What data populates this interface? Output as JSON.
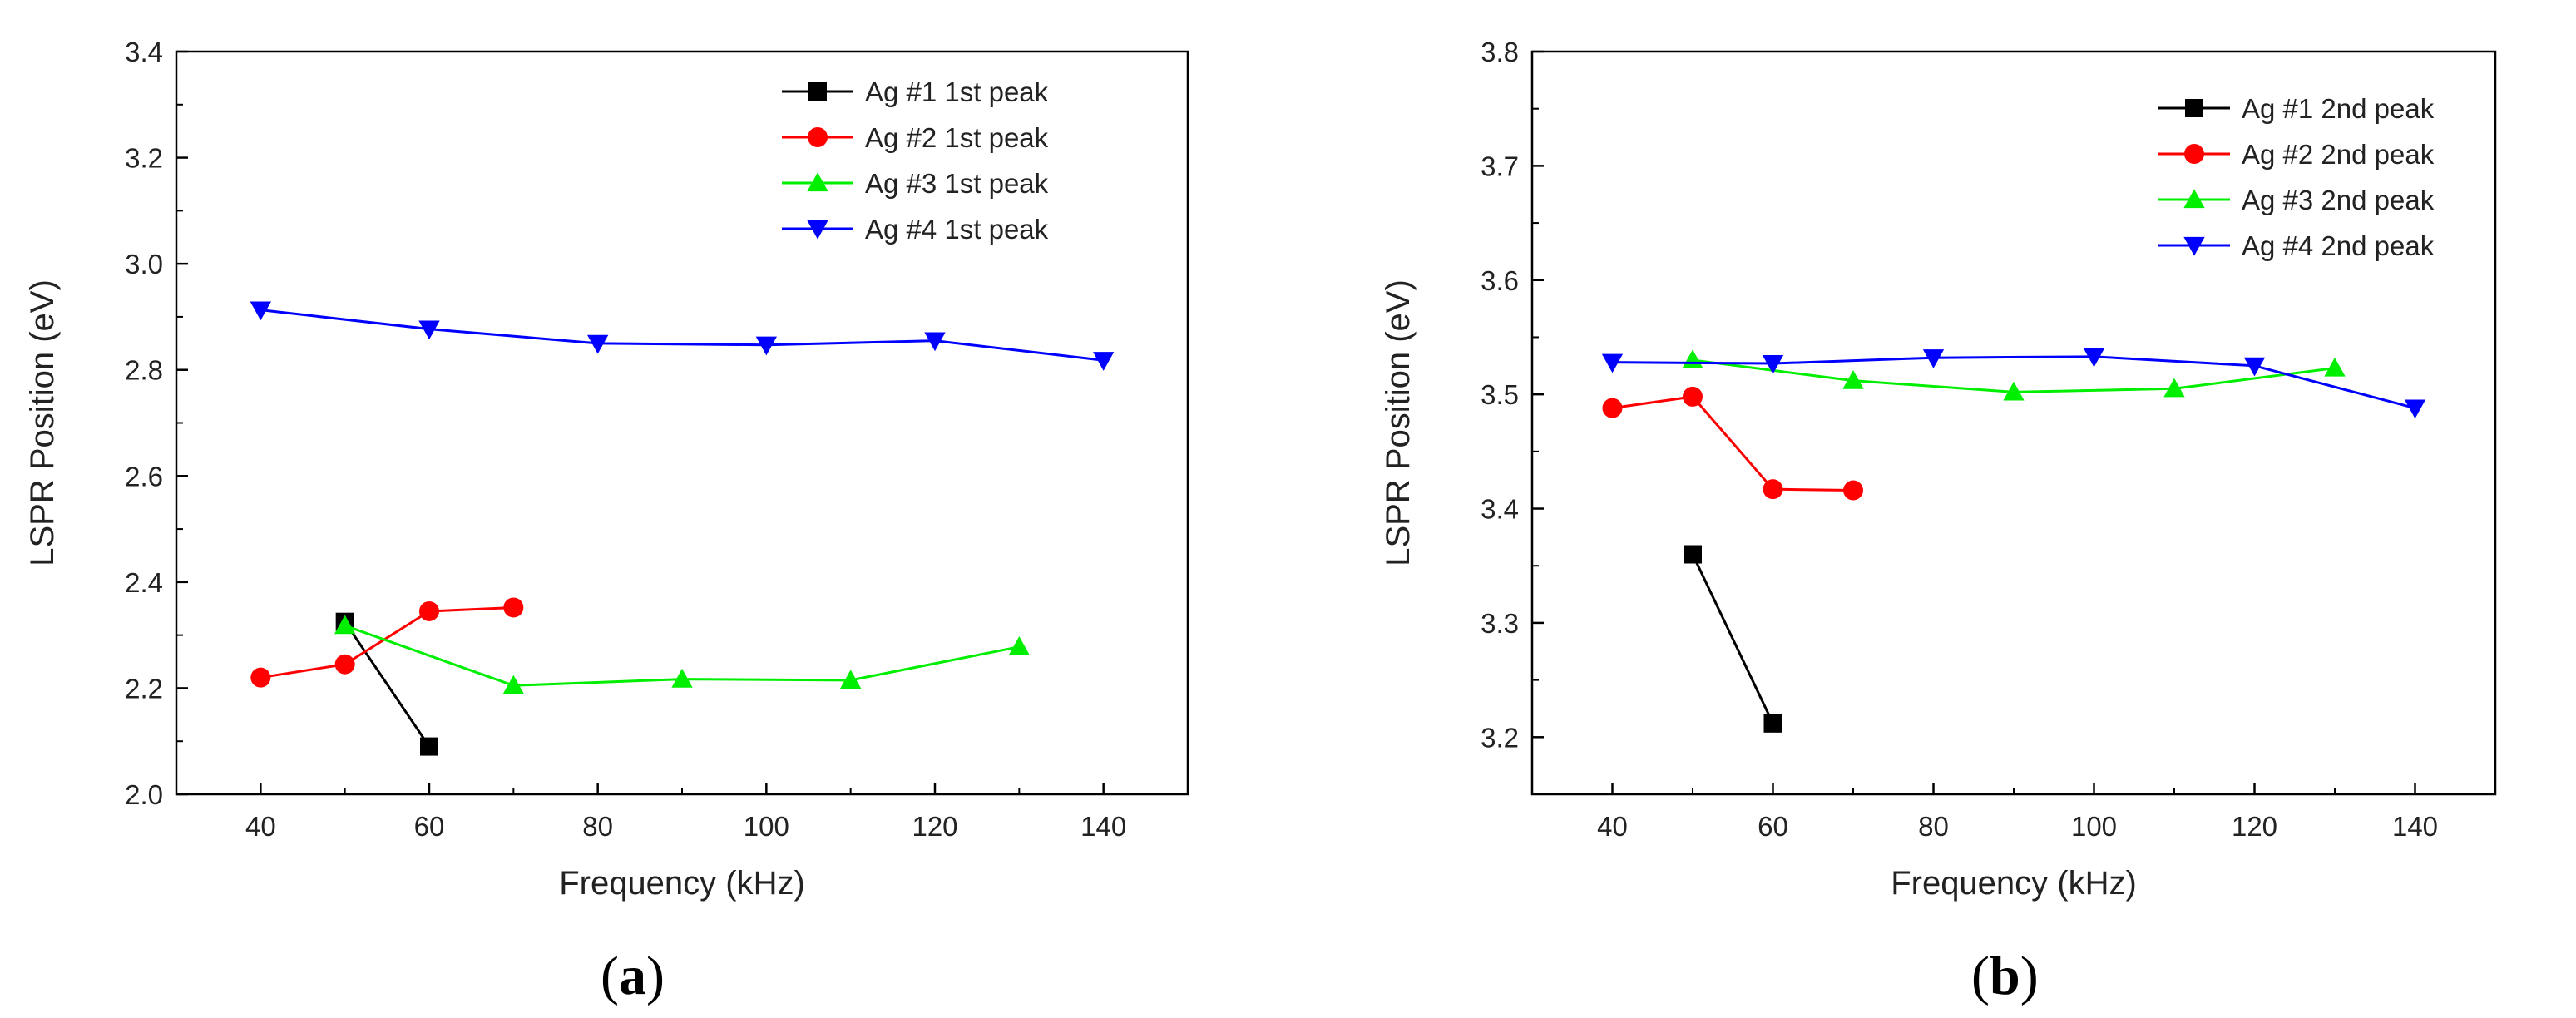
{
  "chart_data": [
    {
      "type": "line",
      "panel_label": "a",
      "title": "",
      "xlabel": "Frequency (kHz)",
      "ylabel": "LSPR Position (eV)",
      "xlim": [
        30,
        150
      ],
      "ylim": [
        2.0,
        3.4
      ],
      "xticks": [
        40,
        60,
        80,
        100,
        120,
        140
      ],
      "yticks": [
        2.0,
        2.2,
        2.4,
        2.6,
        2.8,
        3.0,
        3.2,
        3.4
      ],
      "ytick_labels": [
        "2.0",
        "2.2",
        "2.4",
        "2.6",
        "2.8",
        "3.0",
        "3.2",
        "3.4"
      ],
      "grid": false,
      "legend_position": "top-right",
      "series": [
        {
          "name": "Ag #1 1st peak",
          "color": "#000000",
          "marker": "square",
          "x": [
            50,
            60
          ],
          "y": [
            2.325,
            2.09
          ]
        },
        {
          "name": "Ag #2 1st peak",
          "color": "#ff0000",
          "marker": "circle",
          "x": [
            40,
            50,
            60,
            70
          ],
          "y": [
            2.22,
            2.245,
            2.345,
            2.352
          ]
        },
        {
          "name": "Ag #3 1st peak",
          "color": "#00ee00",
          "marker": "triangle-up",
          "x": [
            50,
            70,
            90,
            110,
            130
          ],
          "y": [
            2.318,
            2.205,
            2.217,
            2.215,
            2.278
          ]
        },
        {
          "name": "Ag #4 1st peak",
          "color": "#0000ff",
          "marker": "triangle-down",
          "x": [
            40,
            60,
            80,
            100,
            120,
            140
          ],
          "y": [
            2.913,
            2.877,
            2.85,
            2.847,
            2.855,
            2.818
          ]
        }
      ]
    },
    {
      "type": "line",
      "panel_label": "b",
      "title": "",
      "xlabel": "Frequency (kHz)",
      "ylabel": "LSPR Position (eV)",
      "xlim": [
        30,
        150
      ],
      "ylim": [
        3.15,
        3.8
      ],
      "xticks": [
        40,
        60,
        80,
        100,
        120,
        140
      ],
      "yticks": [
        3.2,
        3.3,
        3.4,
        3.5,
        3.6,
        3.7,
        3.8
      ],
      "ytick_labels": [
        "3.2",
        "3.3",
        "3.4",
        "3.5",
        "3.6",
        "3.7",
        "3.8"
      ],
      "grid": false,
      "legend_position": "top-right",
      "series": [
        {
          "name": "Ag #1 2nd peak",
          "color": "#000000",
          "marker": "square",
          "x": [
            50,
            60
          ],
          "y": [
            3.36,
            3.212
          ]
        },
        {
          "name": "Ag #2 2nd peak",
          "color": "#ff0000",
          "marker": "circle",
          "x": [
            40,
            50,
            60,
            70
          ],
          "y": [
            3.488,
            3.498,
            3.417,
            3.416
          ]
        },
        {
          "name": "Ag #3 2nd peak",
          "color": "#00ee00",
          "marker": "triangle-up",
          "x": [
            50,
            70,
            90,
            110,
            130
          ],
          "y": [
            3.53,
            3.512,
            3.502,
            3.505,
            3.523
          ]
        },
        {
          "name": "Ag #4 2nd peak",
          "color": "#0000ff",
          "marker": "triangle-down",
          "x": [
            40,
            60,
            80,
            100,
            120,
            140
          ],
          "y": [
            3.528,
            3.527,
            3.532,
            3.533,
            3.525,
            3.488
          ]
        }
      ]
    }
  ]
}
